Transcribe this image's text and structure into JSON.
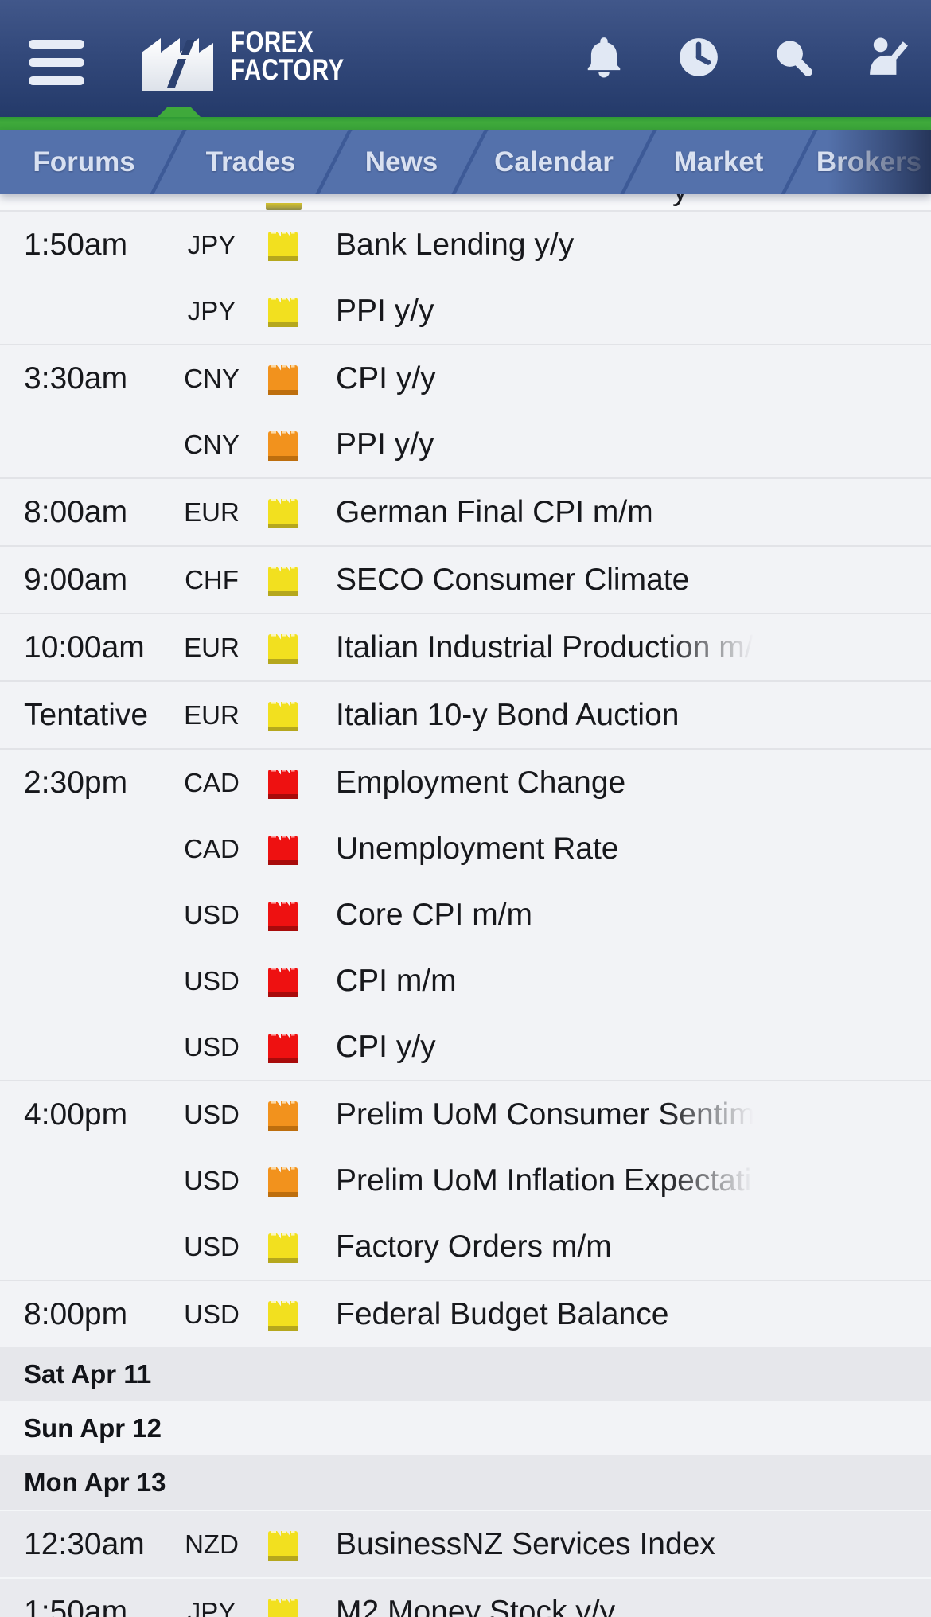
{
  "header": {
    "logo_line1": "FOREX",
    "logo_line2": "FACTORY",
    "icons": [
      "bell-icon",
      "clock-icon",
      "search-icon",
      "member-icon"
    ]
  },
  "nav": {
    "tabs": [
      {
        "label": "Forums"
      },
      {
        "label": "Trades"
      },
      {
        "label": "News"
      },
      {
        "label": "Calendar"
      },
      {
        "label": "Market"
      },
      {
        "label": "Brokers"
      }
    ]
  },
  "calendar": {
    "partial_row_fragment": "y",
    "days": [
      {
        "date_label": "",
        "tone": "light",
        "groups": [
          {
            "time": "1:50am",
            "events": [
              {
                "currency": "JPY",
                "impact": "yellow",
                "title": "Bank Lending y/y"
              },
              {
                "currency": "JPY",
                "impact": "yellow",
                "title": "PPI y/y"
              }
            ]
          },
          {
            "time": "3:30am",
            "events": [
              {
                "currency": "CNY",
                "impact": "orange",
                "title": "CPI y/y"
              },
              {
                "currency": "CNY",
                "impact": "orange",
                "title": "PPI y/y"
              }
            ]
          },
          {
            "time": "8:00am",
            "events": [
              {
                "currency": "EUR",
                "impact": "yellow",
                "title": "German Final CPI m/m"
              }
            ]
          },
          {
            "time": "9:00am",
            "events": [
              {
                "currency": "CHF",
                "impact": "yellow",
                "title": "SECO Consumer Climate"
              }
            ]
          },
          {
            "time": "10:00am",
            "events": [
              {
                "currency": "EUR",
                "impact": "yellow",
                "title": "Italian Industrial Production m/m",
                "truncated": true
              }
            ]
          },
          {
            "time": "Tentative",
            "events": [
              {
                "currency": "EUR",
                "impact": "yellow",
                "title": "Italian 10-y Bond Auction"
              }
            ]
          },
          {
            "time": "2:30pm",
            "events": [
              {
                "currency": "CAD",
                "impact": "red",
                "title": "Employment Change"
              },
              {
                "currency": "CAD",
                "impact": "red",
                "title": "Unemployment Rate"
              },
              {
                "currency": "USD",
                "impact": "red",
                "title": "Core CPI m/m"
              },
              {
                "currency": "USD",
                "impact": "red",
                "title": "CPI m/m"
              },
              {
                "currency": "USD",
                "impact": "red",
                "title": "CPI y/y"
              }
            ]
          },
          {
            "time": "4:00pm",
            "events": [
              {
                "currency": "USD",
                "impact": "orange",
                "title": "Prelim UoM Consumer Sentiment",
                "truncated": true
              },
              {
                "currency": "USD",
                "impact": "orange",
                "title": "Prelim UoM Inflation Expectations",
                "truncated": true
              },
              {
                "currency": "USD",
                "impact": "yellow",
                "title": "Factory Orders m/m"
              }
            ]
          },
          {
            "time": "8:00pm",
            "events": [
              {
                "currency": "USD",
                "impact": "yellow",
                "title": "Federal Budget Balance"
              }
            ]
          }
        ]
      },
      {
        "date_label": "Sat Apr 11",
        "tone": "gray",
        "groups": []
      },
      {
        "date_label": "Sun Apr 12",
        "tone": "light",
        "groups": []
      },
      {
        "date_label": "Mon Apr 13",
        "tone": "gray",
        "groups": [
          {
            "time": "12:30am",
            "events": [
              {
                "currency": "NZD",
                "impact": "yellow",
                "title": "BusinessNZ Services Index"
              }
            ]
          },
          {
            "time": "1:50am",
            "events": [
              {
                "currency": "JPY",
                "impact": "yellow",
                "title": "M2 Money Stock y/y"
              }
            ]
          }
        ]
      }
    ]
  },
  "colors": {
    "header_top": "#41578a",
    "header_bottom": "#243a6a",
    "green_bar": "#3fa93b",
    "nav_bg": "#5471ab",
    "nav_divider": "#3d5a97",
    "row_bg_light": "#f2f3f6",
    "row_bg_gray": "#e9eaee",
    "text": "#17181c",
    "impact": {
      "yellow": {
        "body": "#f2e01f",
        "shadow": "#b5a71d",
        "light": "#fbf6bb"
      },
      "orange": {
        "body": "#f2921d",
        "shadow": "#bd6e0e",
        "light": "#fcd9a4"
      },
      "red": {
        "body": "#ee1111",
        "shadow": "#a80b0b",
        "light": "#ff9d9d"
      }
    }
  }
}
